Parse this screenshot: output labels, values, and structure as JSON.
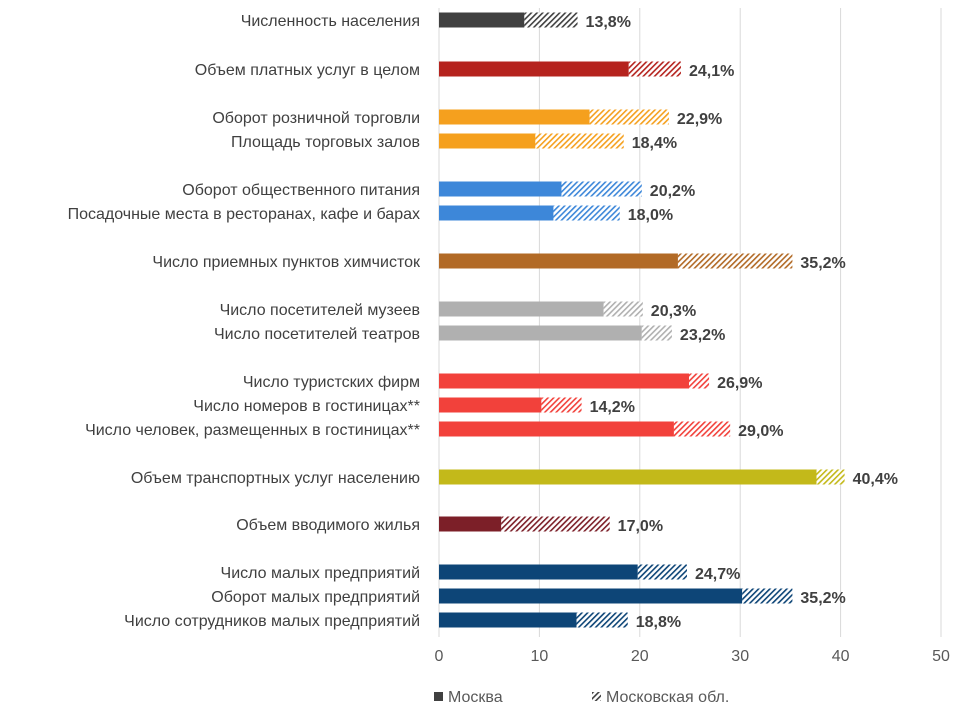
{
  "chart_data": {
    "type": "bar",
    "orientation": "horizontal",
    "stacked": true,
    "xlim": [
      0,
      50
    ],
    "ticks": [
      "0",
      "10",
      "20",
      "30",
      "40",
      "50"
    ],
    "tick_values": [
      0,
      10,
      20,
      30,
      40,
      50
    ],
    "grid": "vertical",
    "legend_position": "bottom",
    "series": [
      {
        "name": "Москва",
        "fill": "solid"
      },
      {
        "name": "Московская обл.",
        "fill": "hatched"
      }
    ],
    "groups": [
      {
        "color": "#404040",
        "items": [
          {
            "label": "Численность населения",
            "moscow": 8.5,
            "oblast": 5.3,
            "total_label": "13,8%"
          }
        ]
      },
      {
        "color": "#B5231E",
        "items": [
          {
            "label": "Объем платных услуг в целом",
            "moscow": 18.9,
            "oblast": 5.2,
            "total_label": "24,1%"
          }
        ]
      },
      {
        "color": "#F5A01E",
        "items": [
          {
            "label": "Оборот розничной торговли",
            "moscow": 15.0,
            "oblast": 7.9,
            "total_label": "22,9%"
          },
          {
            "label": "Площадь торговых залов",
            "moscow": 9.6,
            "oblast": 8.8,
            "total_label": "18,4%"
          }
        ]
      },
      {
        "color": "#3D87D9",
        "items": [
          {
            "label": "Оборот общественного питания",
            "moscow": 12.2,
            "oblast": 8.0,
            "total_label": "20,2%"
          },
          {
            "label": "Посадочные места в ресторанах, кафе и барах",
            "moscow": 11.4,
            "oblast": 6.6,
            "total_label": "18,0%"
          }
        ]
      },
      {
        "color": "#B26A26",
        "items": [
          {
            "label": "Число приемных пунктов химчисток",
            "moscow": 23.8,
            "oblast": 11.4,
            "total_label": "35,2%"
          }
        ]
      },
      {
        "color": "#B0B0B0",
        "items": [
          {
            "label": "Число посетителей музеев",
            "moscow": 16.4,
            "oblast": 3.9,
            "total_label": "20,3%"
          },
          {
            "label": "Число посетителей театров",
            "moscow": 20.2,
            "oblast": 3.0,
            "total_label": "23,2%"
          }
        ]
      },
      {
        "color": "#F2413B",
        "items": [
          {
            "label": "Число туристских фирм",
            "moscow": 24.9,
            "oblast": 2.0,
            "total_label": "26,9%"
          },
          {
            "label": "Число номеров в гостиницах**",
            "moscow": 10.2,
            "oblast": 4.0,
            "total_label": "14,2%"
          },
          {
            "label": "Число человек, размещенных в гостиницах**",
            "moscow": 23.4,
            "oblast": 5.6,
            "total_label": "29,0%"
          }
        ]
      },
      {
        "color": "#C3B91A",
        "items": [
          {
            "label": "Объем транспортных услуг населению",
            "moscow": 37.6,
            "oblast": 2.8,
            "total_label": "40,4%"
          }
        ]
      },
      {
        "color": "#7C1F28",
        "items": [
          {
            "label": "Объем вводимого жилья",
            "moscow": 6.2,
            "oblast": 10.8,
            "total_label": "17,0%"
          }
        ]
      },
      {
        "color": "#0D4577",
        "items": [
          {
            "label": "Число малых предприятий",
            "moscow": 19.8,
            "oblast": 4.9,
            "total_label": "24,7%"
          },
          {
            "label": "Оборот малых предприятий",
            "moscow": 30.2,
            "oblast": 5.0,
            "total_label": "35,2%"
          },
          {
            "label": "Число сотрудников малых предприятий",
            "moscow": 13.7,
            "oblast": 5.1,
            "total_label": "18,8%"
          }
        ]
      }
    ]
  }
}
